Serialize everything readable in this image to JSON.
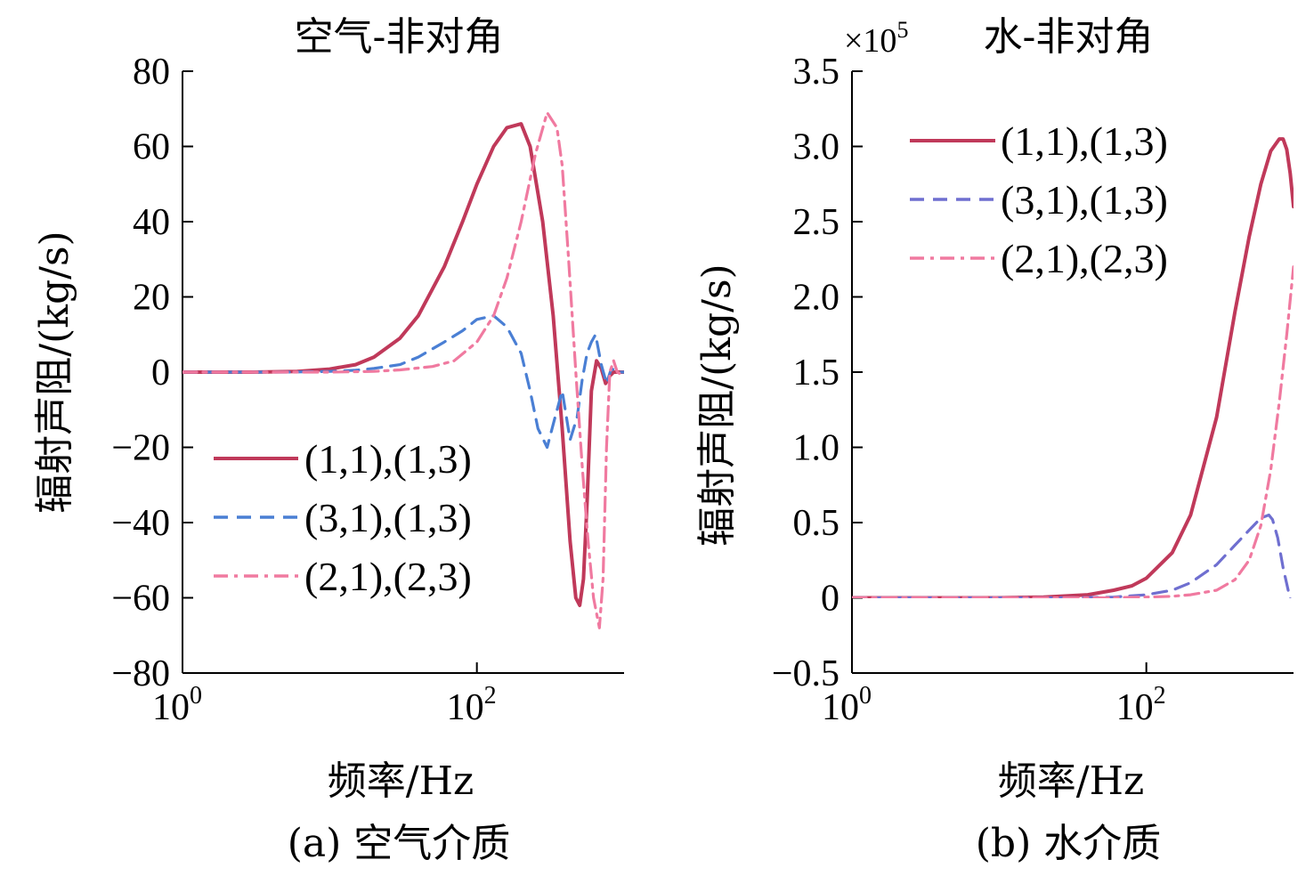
{
  "chart_data": [
    {
      "type": "line",
      "panel": "a",
      "title": "空气-非对角",
      "caption": "(a) 空气介质",
      "xlabel": "频率/Hz",
      "ylabel": "辐射声阻/(kg/s)",
      "xscale": "log",
      "xlim": [
        1,
        1000
      ],
      "ylim": [
        -80,
        80
      ],
      "xticks": [
        {
          "value": 1,
          "base": "10",
          "exp": "0"
        },
        {
          "value": 100,
          "base": "10",
          "exp": "2"
        }
      ],
      "yticks": [
        80,
        60,
        40,
        20,
        0,
        -20,
        -40,
        -60,
        -80
      ],
      "ytick_labels": [
        "80",
        "60",
        "40",
        "20",
        "0",
        "−20",
        "−40",
        "−60",
        "−80"
      ],
      "grid": false,
      "legend_position": "lower-left",
      "series": [
        {
          "name": "(1,1),(1,3)",
          "color": "#c0395a",
          "style": "solid",
          "x": [
            1,
            3,
            6,
            10,
            15,
            20,
            30,
            40,
            60,
            80,
            100,
            130,
            160,
            200,
            230,
            280,
            330,
            380,
            430,
            470,
            500,
            530,
            560,
            600,
            650,
            700,
            750,
            800,
            850,
            900,
            950,
            1000
          ],
          "y": [
            0,
            0,
            0.2,
            0.8,
            2,
            4,
            9,
            15,
            28,
            40,
            50,
            60,
            65,
            66,
            60,
            40,
            15,
            -15,
            -45,
            -60,
            -62,
            -55,
            -35,
            -5,
            3,
            1,
            -3,
            -1,
            0,
            0,
            0,
            0
          ]
        },
        {
          "name": "(3,1),(1,3)",
          "color": "#4a7fd4",
          "style": "dashed",
          "x": [
            1,
            5,
            10,
            15,
            20,
            30,
            40,
            60,
            80,
            100,
            130,
            160,
            200,
            230,
            260,
            300,
            340,
            380,
            430,
            480,
            520,
            560,
            600,
            640,
            700,
            760,
            820,
            900,
            1000
          ],
          "y": [
            0,
            0,
            0.2,
            0.5,
            1,
            2,
            4,
            8,
            11,
            14,
            15,
            12,
            5,
            -5,
            -15,
            -20,
            -12,
            -5,
            -18,
            -12,
            -2,
            5,
            8,
            10,
            2,
            -3,
            1,
            0,
            0
          ]
        },
        {
          "name": "(2,1),(2,3)",
          "color": "#f07aa0",
          "style": "dashdot",
          "x": [
            1,
            10,
            20,
            30,
            50,
            70,
            100,
            130,
            160,
            200,
            250,
            300,
            350,
            380,
            420,
            470,
            520,
            570,
            620,
            680,
            720,
            760,
            800,
            850,
            900,
            1000
          ],
          "y": [
            0,
            0,
            0.2,
            0.6,
            1.5,
            3,
            8,
            15,
            25,
            40,
            58,
            69,
            65,
            55,
            30,
            0,
            -25,
            -45,
            -60,
            -68,
            -55,
            -20,
            0,
            3,
            0,
            -1
          ]
        }
      ]
    },
    {
      "type": "line",
      "panel": "b",
      "title": "水-非对角",
      "caption": "(b) 水介质",
      "xlabel": "频率/Hz",
      "ylabel": "辐射声阻/(kg/s)",
      "multiplier_base": "×10",
      "multiplier_exp": "5",
      "xscale": "log",
      "xlim": [
        1,
        1000
      ],
      "ylim": [
        -0.5,
        3.5
      ],
      "xticks": [
        {
          "value": 1,
          "base": "10",
          "exp": "0"
        },
        {
          "value": 100,
          "base": "10",
          "exp": "2"
        }
      ],
      "yticks": [
        3.5,
        3.0,
        2.5,
        2.0,
        1.5,
        1.0,
        0.5,
        0,
        -0.5
      ],
      "ytick_labels": [
        "3.5",
        "3.0",
        "2.5",
        "2.0",
        "1.5",
        "1.0",
        "0.5",
        "0",
        "−0.5"
      ],
      "grid": false,
      "legend_position": "upper-left",
      "series": [
        {
          "name": "(1,1),(1,3)",
          "color": "#c0395a",
          "style": "solid",
          "x": [
            1,
            5,
            10,
            20,
            40,
            60,
            80,
            100,
            150,
            200,
            300,
            400,
            500,
            600,
            700,
            800,
            850,
            900,
            950,
            1000
          ],
          "y": [
            0,
            0,
            0,
            0.005,
            0.02,
            0.05,
            0.08,
            0.13,
            0.3,
            0.55,
            1.2,
            1.9,
            2.4,
            2.75,
            2.97,
            3.05,
            3.05,
            2.98,
            2.82,
            2.6
          ]
        },
        {
          "name": "(3,1),(1,3)",
          "color": "#6f6fd0",
          "style": "dashed",
          "x": [
            1,
            10,
            30,
            60,
            100,
            150,
            200,
            300,
            400,
            500,
            600,
            680,
            720,
            780,
            850,
            920,
            1000
          ],
          "y": [
            0,
            0,
            0,
            0.005,
            0.02,
            0.05,
            0.1,
            0.22,
            0.35,
            0.45,
            0.53,
            0.55,
            0.52,
            0.4,
            0.2,
            0.05,
            -0.1
          ]
        },
        {
          "name": "(2,1),(2,3)",
          "color": "#f07aa0",
          "style": "dashdot",
          "x": [
            1,
            10,
            50,
            100,
            150,
            200,
            300,
            400,
            500,
            600,
            700,
            800,
            900,
            1000
          ],
          "y": [
            0,
            0,
            0,
            0.005,
            0.01,
            0.02,
            0.05,
            0.12,
            0.25,
            0.48,
            0.85,
            1.3,
            1.75,
            2.2
          ]
        }
      ]
    }
  ]
}
